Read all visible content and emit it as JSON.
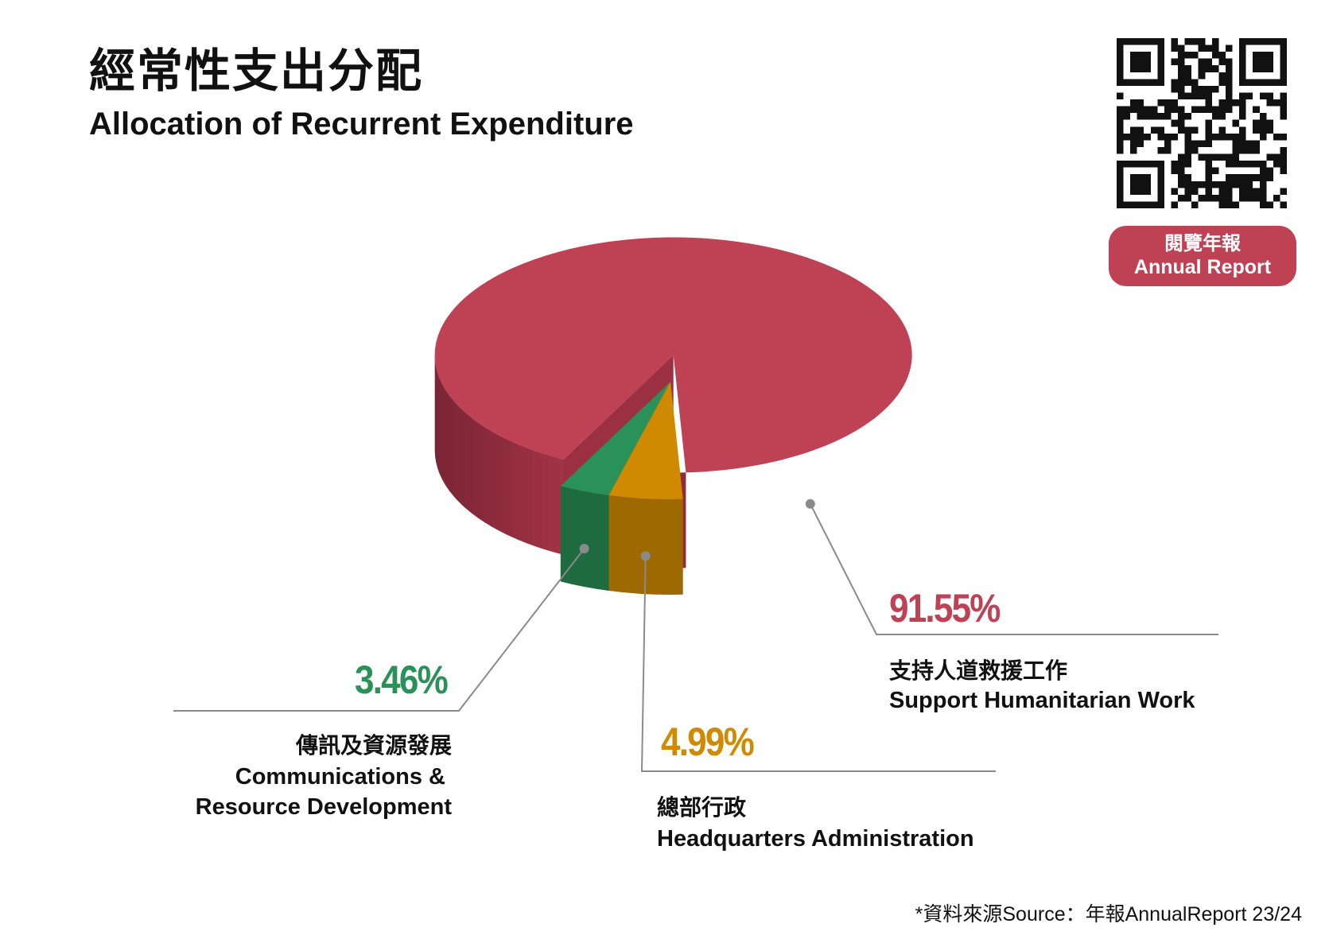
{
  "header": {
    "title_zh": "經常性支出分配",
    "title_en": "Allocation of Recurrent Expenditure"
  },
  "annual_report": {
    "label_zh": "閱覽年報",
    "label_en": "Annual Report"
  },
  "colors": {
    "humanitarian": "#bf4154",
    "communications": "#2a9158",
    "headquarters": "#d08a00"
  },
  "chart_data": {
    "type": "pie",
    "style": "3d",
    "slices": [
      {
        "label_zh": "支持人道救援工作",
        "label_en": "Support Humanitarian Work",
        "value": 91.55,
        "display": "91.55%"
      },
      {
        "label_zh": "總部行政",
        "label_en": "Headquarters Administration",
        "value": 4.99,
        "display": "4.99%"
      },
      {
        "label_zh": "傳訊及資源發展",
        "label_en": "Communications & Resource Development",
        "value": 3.46,
        "display": "3.46%"
      }
    ],
    "legend": "none"
  },
  "labels": {
    "comm_en_line1": "Communications &",
    "comm_en_line2": "Resource Development"
  },
  "source": "*資料來源Source：年報AnnualReport 23/24"
}
